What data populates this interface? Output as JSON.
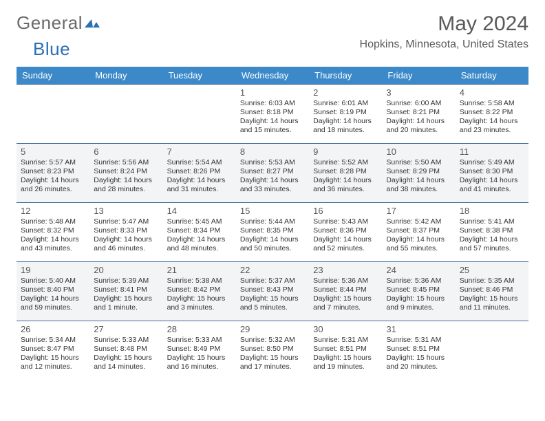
{
  "logo": {
    "part1": "General",
    "part2": "Blue"
  },
  "title": "May 2024",
  "location": "Hopkins, Minnesota, United States",
  "colors": {
    "header_bg": "#3b89c9",
    "header_text": "#ffffff",
    "row_border": "#3b6a94",
    "alt_row_bg": "#f2f4f6",
    "background": "#ffffff",
    "text": "#333333",
    "title_text": "#5a5a5a",
    "logo_blue": "#2b6fb5"
  },
  "typography": {
    "title_fontsize": 30,
    "location_fontsize": 16,
    "header_fontsize": 13,
    "daynum_fontsize": 13,
    "detail_fontsize": 10.5,
    "font_family": "Arial"
  },
  "day_headers": [
    "Sunday",
    "Monday",
    "Tuesday",
    "Wednesday",
    "Thursday",
    "Friday",
    "Saturday"
  ],
  "weeks": [
    [
      null,
      null,
      null,
      {
        "n": "1",
        "sr": "6:03 AM",
        "ss": "8:18 PM",
        "dl": "14 hours and 15 minutes."
      },
      {
        "n": "2",
        "sr": "6:01 AM",
        "ss": "8:19 PM",
        "dl": "14 hours and 18 minutes."
      },
      {
        "n": "3",
        "sr": "6:00 AM",
        "ss": "8:21 PM",
        "dl": "14 hours and 20 minutes."
      },
      {
        "n": "4",
        "sr": "5:58 AM",
        "ss": "8:22 PM",
        "dl": "14 hours and 23 minutes."
      }
    ],
    [
      {
        "n": "5",
        "sr": "5:57 AM",
        "ss": "8:23 PM",
        "dl": "14 hours and 26 minutes."
      },
      {
        "n": "6",
        "sr": "5:56 AM",
        "ss": "8:24 PM",
        "dl": "14 hours and 28 minutes."
      },
      {
        "n": "7",
        "sr": "5:54 AM",
        "ss": "8:26 PM",
        "dl": "14 hours and 31 minutes."
      },
      {
        "n": "8",
        "sr": "5:53 AM",
        "ss": "8:27 PM",
        "dl": "14 hours and 33 minutes."
      },
      {
        "n": "9",
        "sr": "5:52 AM",
        "ss": "8:28 PM",
        "dl": "14 hours and 36 minutes."
      },
      {
        "n": "10",
        "sr": "5:50 AM",
        "ss": "8:29 PM",
        "dl": "14 hours and 38 minutes."
      },
      {
        "n": "11",
        "sr": "5:49 AM",
        "ss": "8:30 PM",
        "dl": "14 hours and 41 minutes."
      }
    ],
    [
      {
        "n": "12",
        "sr": "5:48 AM",
        "ss": "8:32 PM",
        "dl": "14 hours and 43 minutes."
      },
      {
        "n": "13",
        "sr": "5:47 AM",
        "ss": "8:33 PM",
        "dl": "14 hours and 46 minutes."
      },
      {
        "n": "14",
        "sr": "5:45 AM",
        "ss": "8:34 PM",
        "dl": "14 hours and 48 minutes."
      },
      {
        "n": "15",
        "sr": "5:44 AM",
        "ss": "8:35 PM",
        "dl": "14 hours and 50 minutes."
      },
      {
        "n": "16",
        "sr": "5:43 AM",
        "ss": "8:36 PM",
        "dl": "14 hours and 52 minutes."
      },
      {
        "n": "17",
        "sr": "5:42 AM",
        "ss": "8:37 PM",
        "dl": "14 hours and 55 minutes."
      },
      {
        "n": "18",
        "sr": "5:41 AM",
        "ss": "8:38 PM",
        "dl": "14 hours and 57 minutes."
      }
    ],
    [
      {
        "n": "19",
        "sr": "5:40 AM",
        "ss": "8:40 PM",
        "dl": "14 hours and 59 minutes."
      },
      {
        "n": "20",
        "sr": "5:39 AM",
        "ss": "8:41 PM",
        "dl": "15 hours and 1 minute."
      },
      {
        "n": "21",
        "sr": "5:38 AM",
        "ss": "8:42 PM",
        "dl": "15 hours and 3 minutes."
      },
      {
        "n": "22",
        "sr": "5:37 AM",
        "ss": "8:43 PM",
        "dl": "15 hours and 5 minutes."
      },
      {
        "n": "23",
        "sr": "5:36 AM",
        "ss": "8:44 PM",
        "dl": "15 hours and 7 minutes."
      },
      {
        "n": "24",
        "sr": "5:36 AM",
        "ss": "8:45 PM",
        "dl": "15 hours and 9 minutes."
      },
      {
        "n": "25",
        "sr": "5:35 AM",
        "ss": "8:46 PM",
        "dl": "15 hours and 11 minutes."
      }
    ],
    [
      {
        "n": "26",
        "sr": "5:34 AM",
        "ss": "8:47 PM",
        "dl": "15 hours and 12 minutes."
      },
      {
        "n": "27",
        "sr": "5:33 AM",
        "ss": "8:48 PM",
        "dl": "15 hours and 14 minutes."
      },
      {
        "n": "28",
        "sr": "5:33 AM",
        "ss": "8:49 PM",
        "dl": "15 hours and 16 minutes."
      },
      {
        "n": "29",
        "sr": "5:32 AM",
        "ss": "8:50 PM",
        "dl": "15 hours and 17 minutes."
      },
      {
        "n": "30",
        "sr": "5:31 AM",
        "ss": "8:51 PM",
        "dl": "15 hours and 19 minutes."
      },
      {
        "n": "31",
        "sr": "5:31 AM",
        "ss": "8:51 PM",
        "dl": "15 hours and 20 minutes."
      },
      null
    ]
  ],
  "labels": {
    "sunrise": "Sunrise:",
    "sunset": "Sunset:",
    "daylight": "Daylight:"
  }
}
